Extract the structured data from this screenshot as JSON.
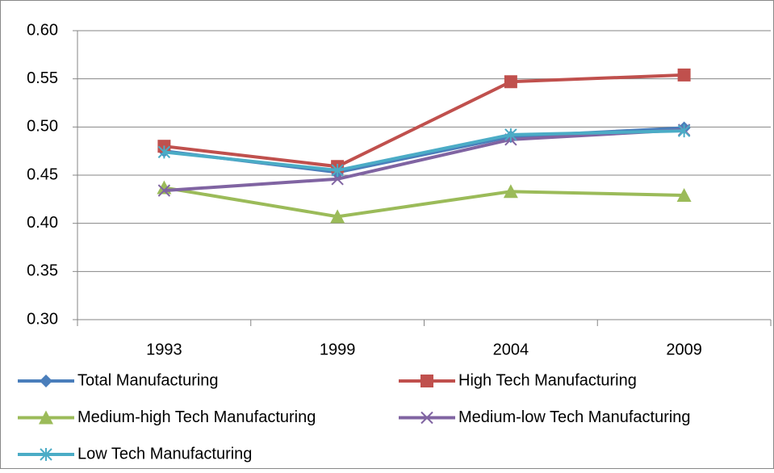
{
  "chart_data": {
    "type": "line",
    "categories": [
      "1993",
      "1999",
      "2004",
      "2009"
    ],
    "series": [
      {
        "name": "Total Manufacturing",
        "color": "#4a7ebb",
        "marker": "diamond",
        "values": [
          0.475,
          0.453,
          0.49,
          0.499
        ]
      },
      {
        "name": "High Tech Manufacturing",
        "color": "#c0504d",
        "marker": "square",
        "values": [
          0.48,
          0.459,
          0.547,
          0.554
        ]
      },
      {
        "name": "Medium-high Tech Manufacturing",
        "color": "#9bbb59",
        "marker": "triangle",
        "values": [
          0.437,
          0.407,
          0.433,
          0.429
        ]
      },
      {
        "name": "Medium-low Tech Manufacturing",
        "color": "#8064a2",
        "marker": "x",
        "values": [
          0.434,
          0.446,
          0.487,
          0.497
        ]
      },
      {
        "name": "Low Tech Manufacturing",
        "color": "#4bacc6",
        "marker": "star",
        "values": [
          0.474,
          0.455,
          0.492,
          0.496
        ]
      }
    ],
    "ylim": [
      0.3,
      0.6
    ],
    "yticks": [
      {
        "value": 0.3,
        "label": "0.30"
      },
      0.35,
      {
        "value": 0.4,
        "label": "0.40"
      },
      0.45,
      {
        "value": 0.5,
        "label": "0.50"
      },
      0.55,
      {
        "value": 0.6,
        "label": "0.60"
      }
    ],
    "grid": true,
    "legend": "bottom"
  }
}
